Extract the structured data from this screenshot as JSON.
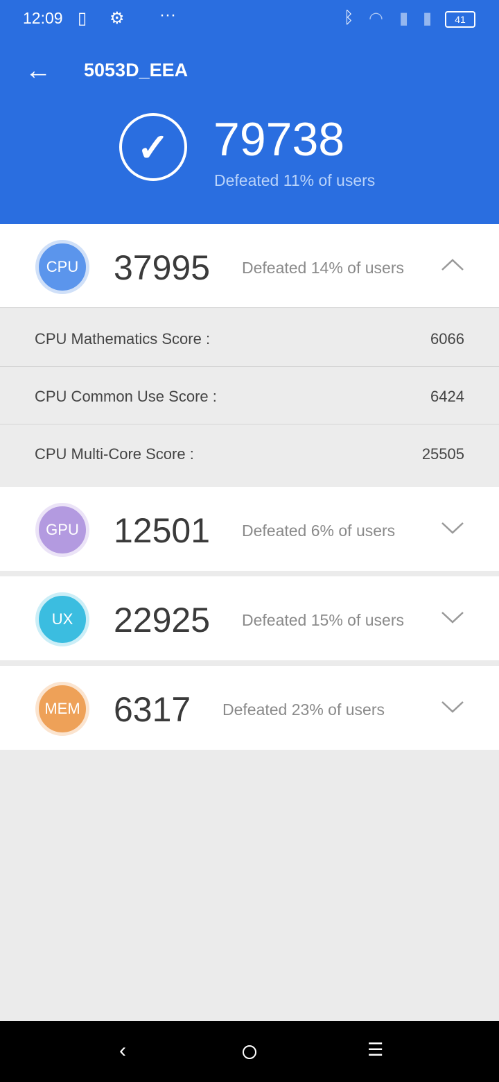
{
  "status_bar": {
    "time": "12:09",
    "battery": "41"
  },
  "header": {
    "title": "5053D_EEA",
    "total_score": "79738",
    "total_defeated": "Defeated 11% of users"
  },
  "categories": [
    {
      "label": "CPU",
      "score": "37995",
      "defeated": "Defeated 14% of users",
      "color": "#5b95ec",
      "expanded": true
    },
    {
      "label": "GPU",
      "score": "12501",
      "defeated": "Defeated 6% of users",
      "color": "#b39ae0",
      "expanded": false
    },
    {
      "label": "UX",
      "score": "22925",
      "defeated": "Defeated 15% of users",
      "color": "#3bbde0",
      "expanded": false
    },
    {
      "label": "MEM",
      "score": "6317",
      "defeated": "Defeated 23% of users",
      "color": "#eea158",
      "expanded": false
    }
  ],
  "cpu_details": [
    {
      "label": "CPU Mathematics Score :",
      "value": "6066"
    },
    {
      "label": "CPU Common Use Score :",
      "value": "6424"
    },
    {
      "label": "CPU Multi-Core Score :",
      "value": "25505"
    }
  ]
}
